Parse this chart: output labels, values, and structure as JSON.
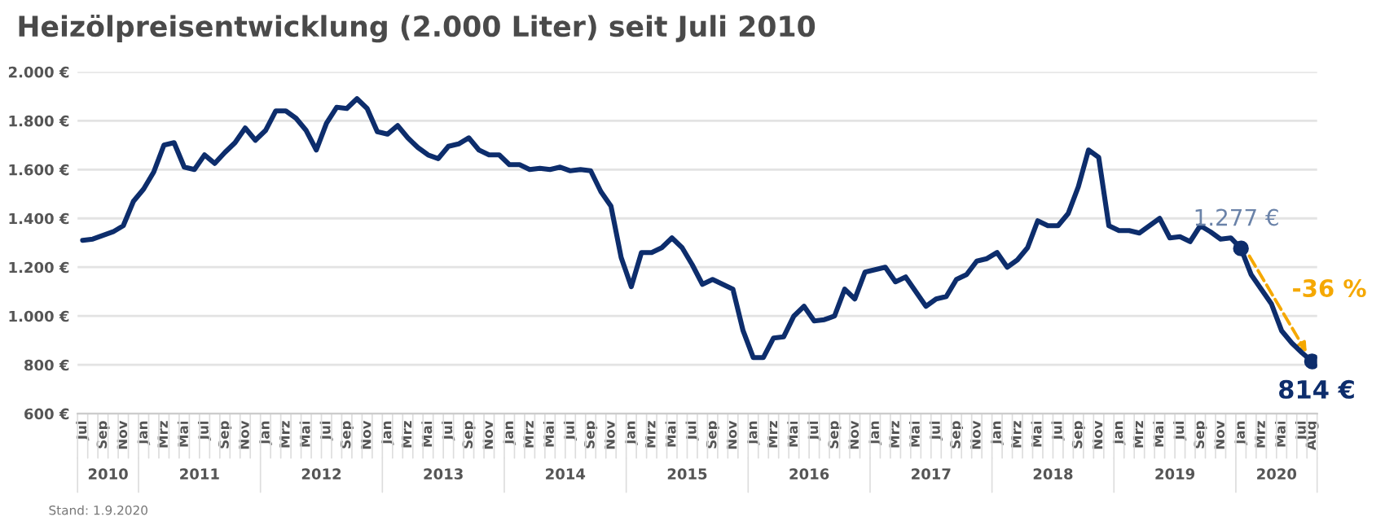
{
  "chart_data": {
    "type": "line",
    "title": "Heizölpreisentwicklung (2.000 Liter) seit Juli 2010",
    "categories": [
      "Jul",
      null,
      "Sep",
      null,
      "Nov",
      null,
      "Jan",
      null,
      "Mrz",
      null,
      "Mai",
      null,
      "Jul",
      null,
      "Sep",
      null,
      "Nov",
      null,
      "Jan",
      null,
      "Mrz",
      null,
      "Mai",
      null,
      "Jul",
      null,
      "Sep",
      null,
      "Nov",
      null,
      "Jan",
      null,
      "Mrz",
      null,
      "Mai",
      null,
      "Jul",
      null,
      "Sep",
      null,
      "Nov",
      null,
      "Jan",
      null,
      "Mrz",
      null,
      "Mai",
      null,
      "Jul",
      null,
      "Sep",
      null,
      "Nov",
      null,
      "Jan",
      null,
      "Mrz",
      null,
      "Mai",
      null,
      "Jul",
      null,
      "Sep",
      null,
      "Nov",
      null,
      "Jan",
      null,
      "Mrz",
      null,
      "Mai",
      null,
      "Jul",
      null,
      "Sep",
      null,
      "Nov",
      null,
      "Jan",
      null,
      "Mrz",
      null,
      "Mai",
      null,
      "Jul",
      null,
      "Sep",
      null,
      "Nov",
      null,
      "Jan",
      null,
      "Mrz",
      null,
      "Mai",
      null,
      "Jul",
      null,
      "Sep",
      null,
      "Nov",
      null,
      "Jan",
      null,
      "Mrz",
      null,
      "Mai",
      null,
      "Jul",
      null,
      "Sep",
      null,
      "Nov",
      null,
      "Jan",
      null,
      "Mrz",
      null,
      "Mai",
      null,
      "Jul",
      "Aug"
    ],
    "series": [
      {
        "color": "#0d2d6c",
        "values": [
          1310,
          1315,
          1330,
          1345,
          1370,
          1470,
          1520,
          1590,
          1700,
          1710,
          1610,
          1600,
          1660,
          1625,
          1670,
          1710,
          1770,
          1720,
          1760,
          1840,
          1840,
          1810,
          1760,
          1680,
          1790,
          1855,
          1850,
          1890,
          1850,
          1755,
          1745,
          1780,
          1730,
          1690,
          1660,
          1645,
          1695,
          1705,
          1730,
          1680,
          1660,
          1660,
          1620,
          1620,
          1600,
          1605,
          1600,
          1610,
          1595,
          1600,
          1595,
          1510,
          1450,
          1240,
          1120,
          1260,
          1260,
          1280,
          1320,
          1280,
          1210,
          1130,
          1150,
          1130,
          1110,
          940,
          830,
          830,
          910,
          915,
          1000,
          1040,
          980,
          985,
          1000,
          1110,
          1070,
          1180,
          1190,
          1200,
          1140,
          1160,
          1100,
          1040,
          1070,
          1080,
          1150,
          1170,
          1225,
          1235,
          1260,
          1200,
          1230,
          1280,
          1390,
          1370,
          1370,
          1420,
          1530,
          1680,
          1650,
          1370,
          1350,
          1350,
          1340,
          1370,
          1400,
          1320,
          1325,
          1305,
          1370,
          1345,
          1315,
          1320,
          1277,
          1170,
          1110,
          1050,
          940,
          890,
          850,
          814
        ]
      }
    ],
    "ylim": [
      600,
      2000
    ],
    "yticks": [
      {
        "value": 600,
        "label": "600 €"
      },
      {
        "value": 800,
        "label": "800 €"
      },
      {
        "value": 1000,
        "label": "1.000 €"
      },
      {
        "value": 1200,
        "label": "1.200 €"
      },
      {
        "value": 1400,
        "label": "1.400 €"
      },
      {
        "value": 1600,
        "label": "1.600 €"
      },
      {
        "value": 1800,
        "label": "1.800 €"
      },
      {
        "value": 2000,
        "label": "2.000 €"
      }
    ],
    "grid": "y",
    "legend": false,
    "annotations": [
      {
        "text": "1.277 €",
        "y": 1277
      },
      {
        "text": "814 €",
        "y": 814
      },
      "-36 %",
      "2010",
      "2011",
      "2012",
      "2013",
      "2014",
      "2015",
      "2016",
      "2017",
      "2018",
      "2019",
      "2020",
      "Stand: 1.9.2020"
    ]
  }
}
